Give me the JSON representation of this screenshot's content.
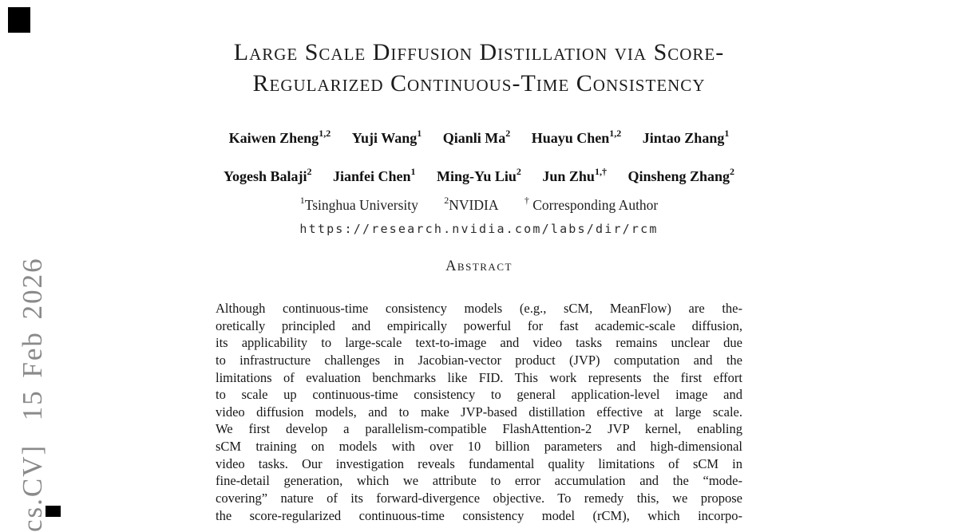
{
  "page": {
    "background": "#ffffff",
    "text_color": "#1f1f1f",
    "watermark_color": "#8a8a8a"
  },
  "watermark": {
    "text": "cs.CV]  15 Feb 2026"
  },
  "title": {
    "line1": "Large Scale Diffusion Distillation via Score-",
    "line2": "Regularized Continuous-Time Consistency"
  },
  "authors": {
    "row1": [
      {
        "name": "Kaiwen Zheng",
        "sup": "1,2"
      },
      {
        "name": "Yuji Wang",
        "sup": "1"
      },
      {
        "name": "Qianli Ma",
        "sup": "2"
      },
      {
        "name": "Huayu Chen",
        "sup": "1,2"
      },
      {
        "name": "Jintao Zhang",
        "sup": "1"
      }
    ],
    "row2": [
      {
        "name": "Yogesh Balaji",
        "sup": "2"
      },
      {
        "name": "Jianfei Chen",
        "sup": "1"
      },
      {
        "name": "Ming-Yu Liu",
        "sup": "2"
      },
      {
        "name": "Jun Zhu",
        "sup": "1,†"
      },
      {
        "name": "Qinsheng Zhang",
        "sup": "2"
      }
    ]
  },
  "affiliations": [
    {
      "sup": "1",
      "label": "Tsinghua University"
    },
    {
      "sup": "2",
      "label": "NVIDIA"
    },
    {
      "sup": "†",
      "label": " Corresponding Author"
    }
  ],
  "link": {
    "url": "https://research.nvidia.com/labs/dir/rcm"
  },
  "abstract": {
    "heading": "Abstract",
    "lines": [
      "Although continuous-time consistency models (e.g., sCM, MeanFlow) are the-",
      "oretically principled and empirically powerful for fast academic-scale diffusion,",
      "its applicability to large-scale text-to-image and video tasks remains unclear due",
      "to infrastructure challenges in Jacobian-vector product (JVP) computation and the",
      "limitations of evaluation benchmarks like FID. This work represents the first effort",
      "to scale up continuous-time consistency to general application-level image and",
      "video diffusion models, and to make JVP-based distillation effective at large scale.",
      "We first develop a parallelism-compatible FlashAttention-2 JVP kernel, enabling",
      "sCM training on models with over 10 billion parameters and high-dimensional",
      "video tasks. Our investigation reveals fundamental quality limitations of sCM in",
      "fine-detail generation, which we attribute to error accumulation and the “mode-",
      "covering” nature of its forward-divergence objective. To remedy this, we propose",
      "the score-regularized continuous-time consistency model (rCM), which incorpo-"
    ]
  }
}
